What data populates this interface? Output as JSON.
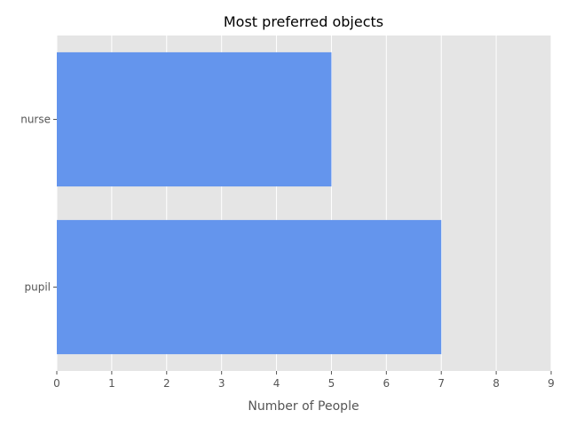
{
  "chart_data": {
    "type": "bar",
    "orientation": "horizontal",
    "title": "Most preferred objects",
    "xlabel": "Number of People",
    "ylabel": "",
    "categories": [
      "nurse",
      "pupil"
    ],
    "values": [
      5,
      7
    ],
    "xlim": [
      0,
      9
    ],
    "xticks": [
      "0",
      "1",
      "2",
      "3",
      "4",
      "5",
      "6",
      "7",
      "8",
      "9"
    ],
    "grid": true,
    "bar_color": "#6495ED",
    "plot_background": "#E5E5E5",
    "grid_color": "#FFFFFF"
  }
}
